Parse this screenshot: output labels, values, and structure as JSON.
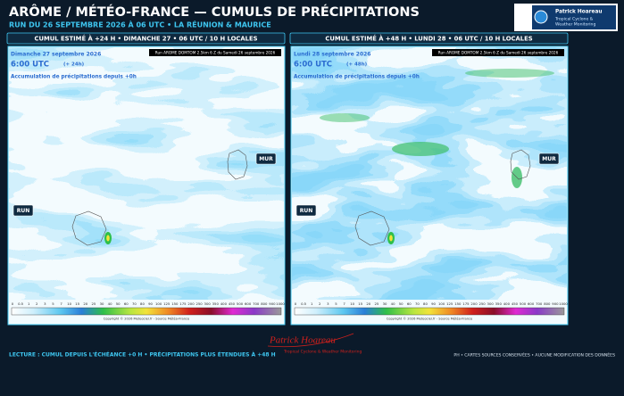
{
  "header": {
    "title": "ARÔME / MÉTÉO-FRANCE — CUMULS DE PRÉCIPITATIONS",
    "subtitle": "RUN DU 26 SEPTEMBRE 2026 À 06 UTC • LA RÉUNION & MAURICE",
    "logo": {
      "name": "Patrick Hoareau",
      "tagline": [
        "Tropical Cyclone &",
        "Weather Monitoring"
      ]
    }
  },
  "panels": [
    {
      "heading": "CUMUL ESTIMÉ À +24 H • DIMANCHE 27 • 06 UTC / 10 H LOCALES",
      "run_info": "Run AROME DOMTOM 2.5km 6 Z du Samedi 26 septembre 2026",
      "date": "Dimanche 27 septembre 2026",
      "time": "6:00 UTC",
      "lead": "(+ 24h)",
      "caption": "Accumulation de précipitations depuis +0h",
      "labels": [
        "MUR",
        "RUN"
      ],
      "copyright": "Copyright © 2026 Meteociel.fr - Source Météo-France"
    },
    {
      "heading": "CUMUL ESTIMÉ À +48 H • LUNDI 28 • 06 UTC / 10 H LOCALES",
      "run_info": "Run AROME DOMTOM 2.5km 6 Z du Samedi 26 septembre 2026",
      "date": "Lundi 28 septembre 2026",
      "time": "6:00 UTC",
      "lead": "(+ 48h)",
      "caption": "Accumulation de précipitations depuis +0h",
      "labels": [
        "MUR",
        "RUN"
      ],
      "copyright": "Copyright © 2026 Meteociel.fr - Source Météo-France"
    }
  ],
  "colorbar_labels": [
    "0",
    "0.5",
    "1",
    "2",
    "3",
    "5",
    "7",
    "10",
    "15",
    "20",
    "25",
    "30",
    "40",
    "50",
    "60",
    "70",
    "80",
    "90",
    "100",
    "125",
    "150",
    "175",
    "200",
    "250",
    "300",
    "350",
    "400",
    "450",
    "500",
    "600",
    "700",
    "800",
    "900",
    "1000"
  ],
  "footer": {
    "note": "LECTURE : CUMUL DEPUIS L'ÉCHÉANCE +0 H • PRÉCIPITATIONS PLUS ÉTENDUES À +48 H",
    "signature": "Patrick Hoareau",
    "signature_tagline": "Tropical Cyclone & Weather Monitoring",
    "credits": "PH • CARTES SOURCES CONSERVÉES • AUCUNE MODIFICATION DES DONNÉES"
  }
}
